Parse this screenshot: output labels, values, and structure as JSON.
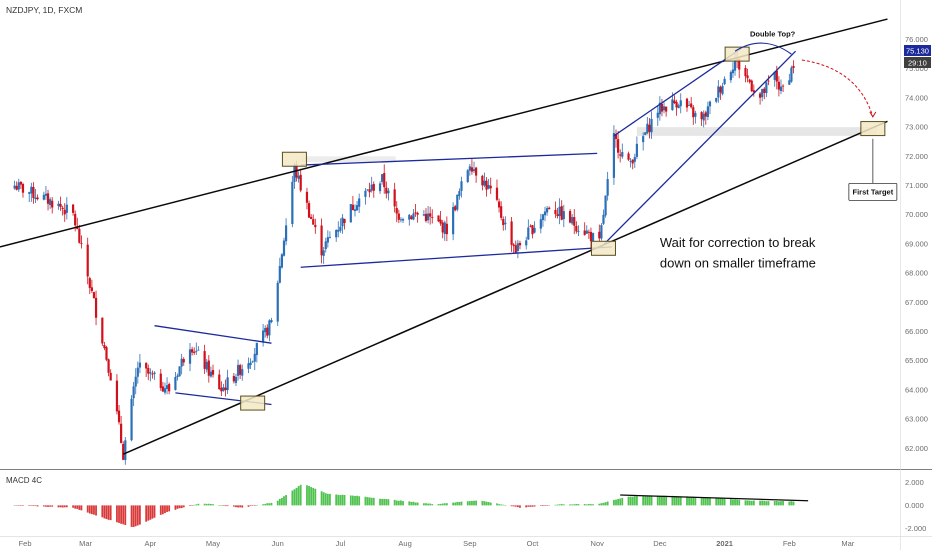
{
  "header": {
    "title": "NZDJPY, 1D, FXCM"
  },
  "colors": {
    "up": "#2a6fb8",
    "down": "#d0101a",
    "trend": "#0a0a0a",
    "channel": "#1c2a9c",
    "hist_up": "#4fc24f",
    "hist_down": "#d83a3a",
    "target_arrow": "#d0101a",
    "box_fill": "#f3e9c4",
    "box_stroke": "#5a4d1e"
  },
  "chart_data": [
    {
      "type": "candlestick",
      "title": "NZDJPY, 1D, FXCM",
      "x_tick_labels": [
        "Feb",
        "Mar",
        "Apr",
        "May",
        "Jun",
        "Jul",
        "Aug",
        "Sep",
        "Oct",
        "Nov",
        "Dec",
        "2021",
        "Feb",
        "Mar"
      ],
      "y_tick_labels": [
        "62.000",
        "63.000",
        "64.000",
        "65.000",
        "66.000",
        "67.000",
        "68.000",
        "69.000",
        "70.000",
        "71.000",
        "72.000",
        "73.000",
        "74.000",
        "75.000",
        "76.000"
      ],
      "ylim": [
        61.6,
        76.6
      ],
      "grid": false,
      "price_label": "75.130",
      "countdown_label": "29:10",
      "anchors": [
        {
          "date": "2020-01-27",
          "price": 71.0
        },
        {
          "date": "2020-02-15",
          "price": 70.4
        },
        {
          "date": "2020-02-24",
          "price": 70.0
        },
        {
          "date": "2020-03-05",
          "price": 67.0
        },
        {
          "date": "2020-03-13",
          "price": 64.5
        },
        {
          "date": "2020-03-19",
          "price": 61.8
        },
        {
          "date": "2020-03-26",
          "price": 64.8
        },
        {
          "date": "2020-04-10",
          "price": 64.0
        },
        {
          "date": "2020-04-20",
          "price": 65.6
        },
        {
          "date": "2020-05-05",
          "price": 64.0
        },
        {
          "date": "2020-05-20",
          "price": 65.2
        },
        {
          "date": "2020-05-29",
          "price": 66.3
        },
        {
          "date": "2020-06-09",
          "price": 71.6
        },
        {
          "date": "2020-06-22",
          "price": 68.8
        },
        {
          "date": "2020-07-09",
          "price": 70.5
        },
        {
          "date": "2020-07-21",
          "price": 71.2
        },
        {
          "date": "2020-07-28",
          "price": 70.0
        },
        {
          "date": "2020-08-10",
          "price": 70.0
        },
        {
          "date": "2020-08-21",
          "price": 69.5
        },
        {
          "date": "2020-09-01",
          "price": 71.8
        },
        {
          "date": "2020-09-11",
          "price": 70.8
        },
        {
          "date": "2020-09-23",
          "price": 68.8
        },
        {
          "date": "2020-10-09",
          "price": 70.3
        },
        {
          "date": "2020-10-27",
          "price": 69.4
        },
        {
          "date": "2020-11-02",
          "price": 69.0
        },
        {
          "date": "2020-11-09",
          "price": 72.6
        },
        {
          "date": "2020-11-16",
          "price": 71.7
        },
        {
          "date": "2020-11-30",
          "price": 73.6
        },
        {
          "date": "2020-12-10",
          "price": 73.9
        },
        {
          "date": "2020-12-21",
          "price": 73.2
        },
        {
          "date": "2021-01-06",
          "price": 75.3
        },
        {
          "date": "2021-01-18",
          "price": 74.0
        },
        {
          "date": "2021-01-25",
          "price": 74.8
        },
        {
          "date": "2021-01-28",
          "price": 74.2
        },
        {
          "date": "2021-02-03",
          "price": 75.13
        }
      ],
      "trendlines": [
        {
          "style": "upper-trend",
          "p1": {
            "date": "2020-01-20",
            "price": 68.9
          },
          "p2": {
            "date": "2021-03-20",
            "price": 76.7
          }
        },
        {
          "style": "lower-trend",
          "p1": {
            "date": "2020-03-19",
            "price": 61.8
          },
          "p2": {
            "date": "2021-03-20",
            "price": 73.2
          }
        },
        {
          "style": "channel",
          "p1": {
            "date": "2020-06-12",
            "price": 71.7
          },
          "p2": {
            "date": "2020-11-01",
            "price": 72.1
          }
        },
        {
          "style": "channel",
          "p1": {
            "date": "2020-06-12",
            "price": 68.2
          },
          "p2": {
            "date": "2020-11-08",
            "price": 68.9
          }
        },
        {
          "style": "channel",
          "p1": {
            "date": "2020-04-03",
            "price": 66.2
          },
          "p2": {
            "date": "2020-05-29",
            "price": 65.6
          }
        },
        {
          "style": "channel",
          "p1": {
            "date": "2020-04-13",
            "price": 63.9
          },
          "p2": {
            "date": "2020-05-29",
            "price": 63.5
          }
        },
        {
          "style": "channel",
          "p1": {
            "date": "2020-11-09",
            "price": 72.7
          },
          "p2": {
            "date": "2021-01-09",
            "price": 75.7
          }
        },
        {
          "style": "channel",
          "p1": {
            "date": "2020-11-03",
            "price": 68.9
          },
          "p2": {
            "date": "2021-02-04",
            "price": 75.6
          }
        }
      ],
      "highlight_boxes": [
        {
          "date": "2020-06-09",
          "price": 71.9
        },
        {
          "date": "2020-05-20",
          "price": 63.55
        },
        {
          "date": "2020-11-04",
          "price": 68.85
        },
        {
          "date": "2021-01-07",
          "price": 75.5
        },
        {
          "date": "2021-03-13",
          "price": 72.95
        }
      ],
      "annotations": [
        {
          "text": "Double Top?",
          "date": "2021-01-24",
          "price": 76.1
        },
        {
          "text": "First Target",
          "date": "2021-03-13",
          "price": 70.8
        },
        {
          "text": "Wait for correction to break",
          "date": "2020-12-01",
          "price": 68.9
        },
        {
          "text": "down on smaller timeframe",
          "date": "2020-12-01",
          "price": 68.4
        }
      ]
    },
    {
      "type": "bar",
      "title": "MACD 4C",
      "y_tick_labels": [
        "2.000",
        "0.000",
        "-2.000"
      ],
      "ylim": [
        -2.4,
        2.9
      ],
      "histogram_anchors": [
        {
          "date": "2020-01-27",
          "value": 0.0
        },
        {
          "date": "2020-02-24",
          "value": -0.2
        },
        {
          "date": "2020-03-13",
          "value": -1.3
        },
        {
          "date": "2020-03-24",
          "value": -1.9
        },
        {
          "date": "2020-04-10",
          "value": -0.5
        },
        {
          "date": "2020-04-25",
          "value": 0.2
        },
        {
          "date": "2020-05-15",
          "value": -0.2
        },
        {
          "date": "2020-05-31",
          "value": 0.3
        },
        {
          "date": "2020-06-13",
          "value": 1.9
        },
        {
          "date": "2020-06-25",
          "value": 1.0
        },
        {
          "date": "2020-07-10",
          "value": 0.8
        },
        {
          "date": "2020-07-25",
          "value": 0.5
        },
        {
          "date": "2020-08-15",
          "value": 0.1
        },
        {
          "date": "2020-09-05",
          "value": 0.45
        },
        {
          "date": "2020-09-25",
          "value": -0.2
        },
        {
          "date": "2020-10-15",
          "value": 0.1
        },
        {
          "date": "2020-11-01",
          "value": 0.1
        },
        {
          "date": "2020-11-15",
          "value": 0.75
        },
        {
          "date": "2020-12-05",
          "value": 0.85
        },
        {
          "date": "2020-12-31",
          "value": 0.6
        },
        {
          "date": "2021-01-15",
          "value": 0.4
        },
        {
          "date": "2021-02-03",
          "value": 0.35
        }
      ],
      "divergence_line": {
        "p1": {
          "date": "2020-11-12",
          "value": 0.9
        },
        "p2": {
          "date": "2021-02-10",
          "value": 0.4
        }
      }
    }
  ]
}
